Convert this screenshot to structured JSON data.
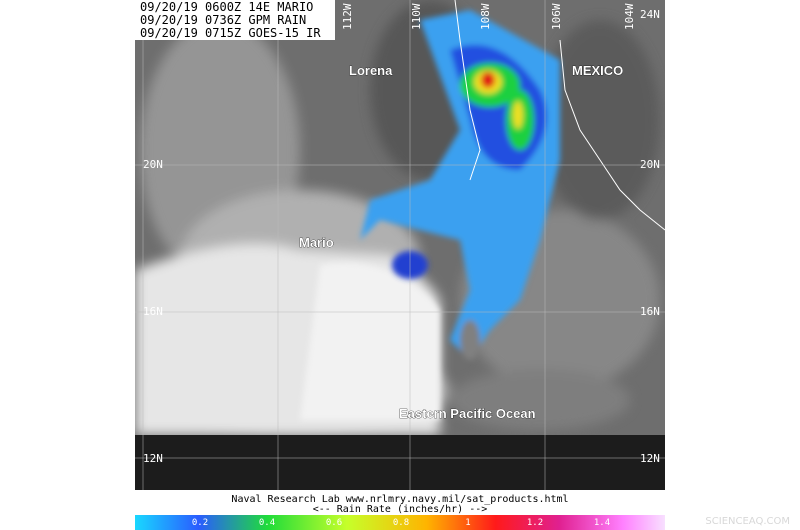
{
  "header": {
    "lines": [
      "09/20/19 0600Z 14E MARIO",
      "09/20/19 0736Z GPM RAIN",
      "09/20/19 0715Z GOES-15 IR"
    ]
  },
  "map": {
    "lon_labels": [
      "112W",
      "110W",
      "108W",
      "106W",
      "104W"
    ],
    "lat_labels": [
      "24N",
      "20N",
      "16N",
      "12N"
    ],
    "places": [
      "Lorena",
      "MEXICO",
      "Mario",
      "Eastern Pacific Ocean"
    ]
  },
  "footer": {
    "credit": "Naval Research Lab  www.nrlmry.navy.mil/sat_products.html",
    "scale_title": "<--    Rain Rate (inches/hr)    -->",
    "scale_ticks": [
      "0.2",
      "0.4",
      "0.6",
      "0.8",
      "1",
      "1.2",
      "1.4"
    ]
  },
  "watermark": "SCIENCEAQ.COM"
}
